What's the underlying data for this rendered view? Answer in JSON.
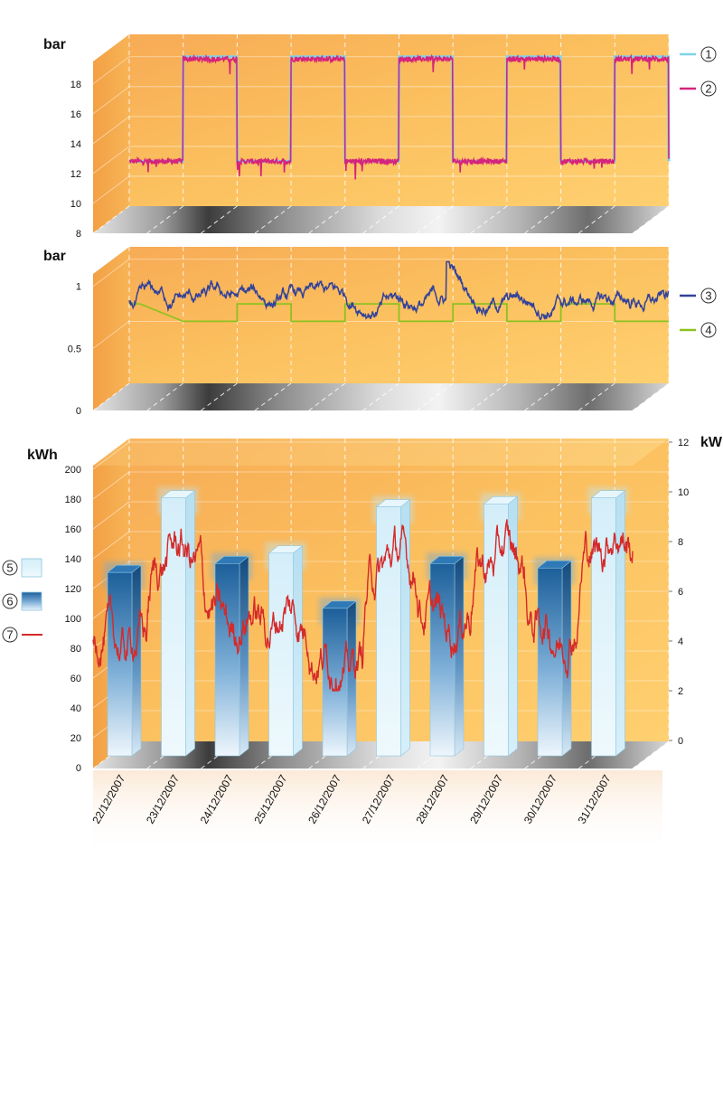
{
  "charts": [
    {
      "unit_label": "bar",
      "y_ticks": [
        "8",
        "10",
        "12",
        "14",
        "16",
        "18"
      ],
      "ylim": [
        8,
        19.5
      ],
      "legend": [
        {
          "number": "1",
          "color": "#7fd3ea"
        },
        {
          "number": "2",
          "color": "#d6237b"
        }
      ]
    },
    {
      "unit_label": "bar",
      "y_ticks": [
        "0",
        "0.5",
        "1"
      ],
      "ylim": [
        0,
        1.1
      ],
      "legend": [
        {
          "number": "3",
          "color": "#33429a"
        },
        {
          "number": "4",
          "color": "#8dc21f"
        }
      ]
    },
    {
      "unit_label_left": "kWh",
      "unit_label_right": "kW",
      "y_ticks_left": [
        "0",
        "20",
        "40",
        "60",
        "80",
        "100",
        "120",
        "140",
        "160",
        "180",
        "200"
      ],
      "y_ticks_right": [
        "0",
        "2",
        "4",
        "6",
        "8",
        "10",
        "12"
      ],
      "legend": [
        {
          "number": "5",
          "kind": "light-bar"
        },
        {
          "number": "6",
          "kind": "dark-bar"
        },
        {
          "number": "7",
          "kind": "line",
          "color": "#d42a2a"
        }
      ]
    }
  ],
  "chart_data": [
    {
      "type": "line",
      "ylabel": "bar",
      "ylim": [
        8,
        19.5
      ],
      "x": [
        "22/12/2007",
        "23/12/2007",
        "24/12/2007",
        "25/12/2007",
        "26/12/2007",
        "27/12/2007",
        "28/12/2007",
        "29/12/2007",
        "30/12/2007",
        "31/12/2007"
      ],
      "step_profile": {
        "low_level": 11,
        "high_level": 18,
        "high_windows": [
          [
            1,
            2
          ],
          [
            3,
            4
          ],
          [
            5,
            6
          ],
          [
            7,
            8
          ],
          [
            9,
            10
          ]
        ]
      },
      "series": [
        {
          "name": "1",
          "color": "#7fd3ea"
        },
        {
          "name": "2",
          "color": "#d6237b"
        }
      ]
    },
    {
      "type": "line",
      "ylabel": "bar",
      "ylim": [
        0,
        1.1
      ],
      "x": [
        "22/12/2007",
        "23/12/2007",
        "24/12/2007",
        "25/12/2007",
        "26/12/2007",
        "27/12/2007",
        "28/12/2007",
        "29/12/2007",
        "30/12/2007",
        "31/12/2007"
      ],
      "series": [
        {
          "name": "3",
          "color": "#33429a",
          "range": [
            0.45,
            1.05
          ]
        },
        {
          "name": "4",
          "color": "#8dc21f",
          "steps": [
            [
              0,
              0.64
            ],
            [
              0.2,
              0.64
            ],
            [
              1,
              0.5
            ],
            [
              2,
              0.5
            ],
            [
              2,
              0.64
            ],
            [
              3,
              0.64
            ],
            [
              3,
              0.5
            ],
            [
              4,
              0.5
            ],
            [
              4,
              0.64
            ],
            [
              5,
              0.64
            ],
            [
              5,
              0.5
            ],
            [
              6,
              0.5
            ],
            [
              6,
              0.64
            ],
            [
              7,
              0.64
            ],
            [
              7,
              0.5
            ],
            [
              8,
              0.5
            ],
            [
              8,
              0.64
            ],
            [
              9,
              0.64
            ],
            [
              9,
              0.5
            ],
            [
              10,
              0.5
            ]
          ]
        }
      ]
    },
    {
      "type": "bar",
      "categories": [
        "22/12/2007",
        "23/12/2007",
        "24/12/2007",
        "25/12/2007",
        "26/12/2007",
        "27/12/2007",
        "28/12/2007",
        "29/12/2007",
        "30/12/2007",
        "31/12/2007"
      ],
      "ylabel": "kWh",
      "ylim": [
        0,
        200
      ],
      "y2label": "kW",
      "y2lim": [
        0,
        12
      ],
      "series": [
        {
          "name": "5",
          "style": "light",
          "values": [
            null,
            182,
            null,
            145,
            null,
            176,
            null,
            178,
            null,
            182
          ]
        },
        {
          "name": "6",
          "style": "dark",
          "values": [
            132,
            null,
            138,
            null,
            108,
            null,
            138,
            null,
            135,
            null
          ]
        },
        {
          "name": "7",
          "type": "line",
          "axis": "right",
          "color": "#d42a2a",
          "daily_mean_kw": [
            4.0,
            7.5,
            4.8,
            4.9,
            2.9,
            7.2,
            4.8,
            7.4,
            4.3,
            8.0
          ]
        }
      ]
    }
  ]
}
